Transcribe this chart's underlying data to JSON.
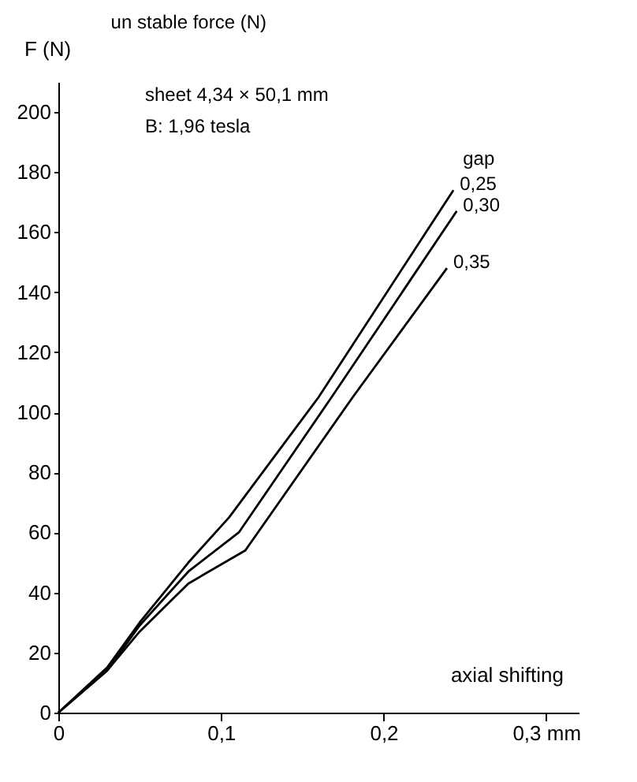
{
  "chart_data": {
    "type": "line",
    "title": "un stable force (N)",
    "annotations": [
      "sheet 4,34 × 50,1 mm",
      "B: 1,96 tesla"
    ],
    "xlabel": "axial shifting",
    "ylabel": "F (N)",
    "legend_title": "gap",
    "series": [
      {
        "name": "0,25",
        "color": "#000000",
        "x": [
          0,
          0.03,
          0.05,
          0.08,
          0.105,
          0.16,
          0.243
        ],
        "values": [
          0,
          15,
          30,
          50,
          65,
          105,
          174
        ]
      },
      {
        "name": "0,30",
        "color": "#000000",
        "x": [
          0,
          0.03,
          0.05,
          0.08,
          0.111,
          0.168,
          0.245
        ],
        "values": [
          0,
          14,
          29,
          47,
          60,
          105,
          167
        ]
      },
      {
        "name": "0,35",
        "color": "#000000",
        "x": [
          0,
          0.03,
          0.05,
          0.08,
          0.115,
          0.181,
          0.239
        ],
        "values": [
          0,
          14,
          27,
          43,
          54,
          105,
          148
        ]
      }
    ],
    "xlim": [
      0,
      0.32
    ],
    "xticks": [
      0,
      {
        "value": 0.1,
        "label": "0,1"
      },
      {
        "value": 0.2,
        "label": "0,2"
      },
      {
        "value": 0.3,
        "label": "0,3 mm"
      }
    ],
    "ylim": [
      0,
      210
    ],
    "yticks": [
      0,
      20,
      40,
      60,
      80,
      100,
      120,
      140,
      160,
      180,
      200
    ],
    "grid": false,
    "legend": false,
    "marker": "none"
  }
}
